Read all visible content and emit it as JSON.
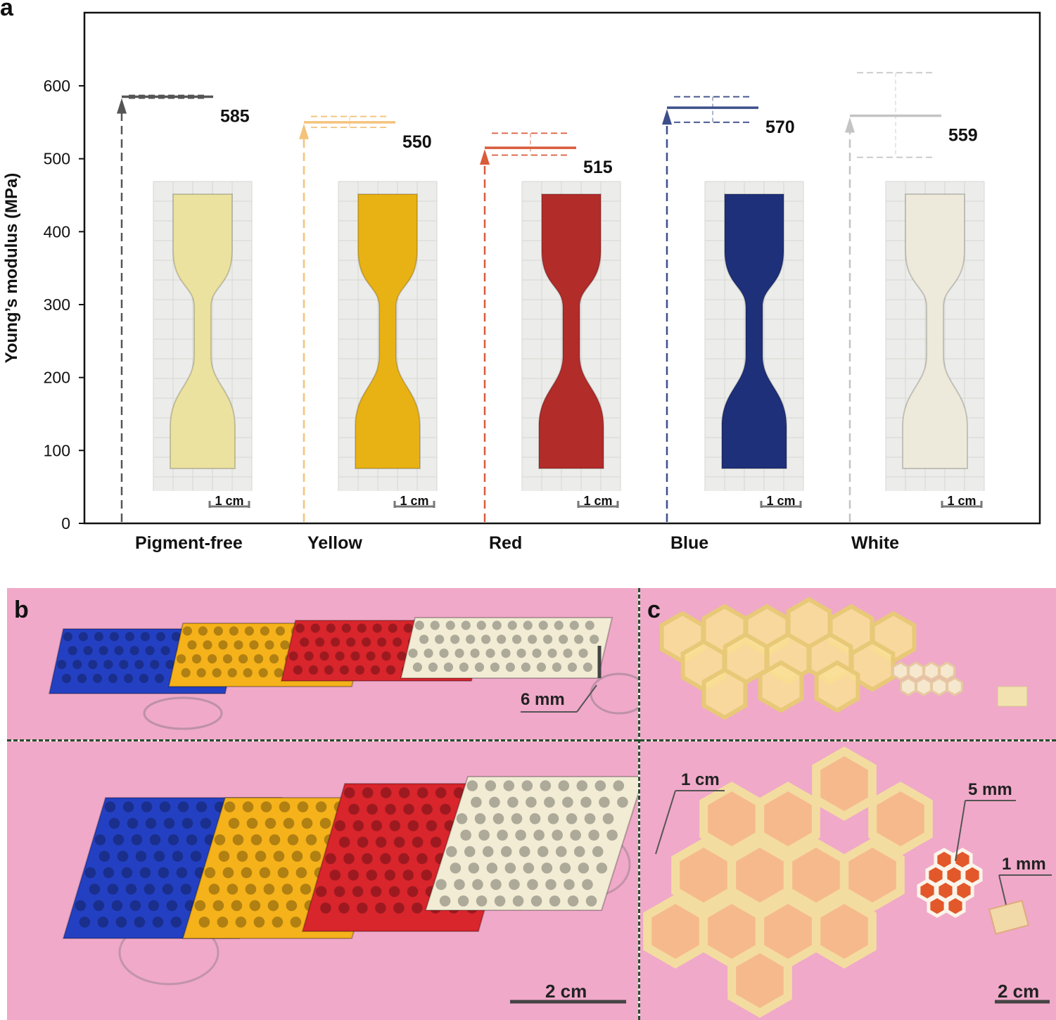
{
  "panels": {
    "a": "a",
    "b": "b",
    "c": "c"
  },
  "chart_data": {
    "type": "bar",
    "ylabel": "Young’s modulus (MPa)",
    "ylim": [
      0,
      700
    ],
    "yticks": [
      0,
      100,
      200,
      300,
      400,
      500,
      600
    ],
    "categories": [
      "Pigment-free",
      "Yellow",
      "Red",
      "Blue",
      "White"
    ],
    "values": [
      585,
      550,
      515,
      570,
      559
    ],
    "error_low": [
      583,
      543,
      505,
      550,
      502
    ],
    "error_high": [
      587,
      558,
      535,
      585,
      618
    ],
    "value_labels": [
      "585",
      "550",
      "515",
      "570",
      "559"
    ],
    "colors": [
      "#555555",
      "#f4c27a",
      "#d95c3b",
      "#3d4f8a",
      "#c4c4c4"
    ],
    "specimen_colors": [
      "#ebe2a0",
      "#e9b214",
      "#b22c2a",
      "#1f307a",
      "#eeeadb"
    ],
    "scale_label": "1 cm"
  },
  "photo_b": {
    "top_scale": "6 mm",
    "bottom_scale": "2 cm",
    "colors": [
      "#2440c2",
      "#f5b21a",
      "#d9252c",
      "#f2ecd5"
    ]
  },
  "photo_c": {
    "labels": [
      "1 cm",
      "5 mm",
      "1 mm"
    ],
    "bottom_scale": "2 cm"
  }
}
